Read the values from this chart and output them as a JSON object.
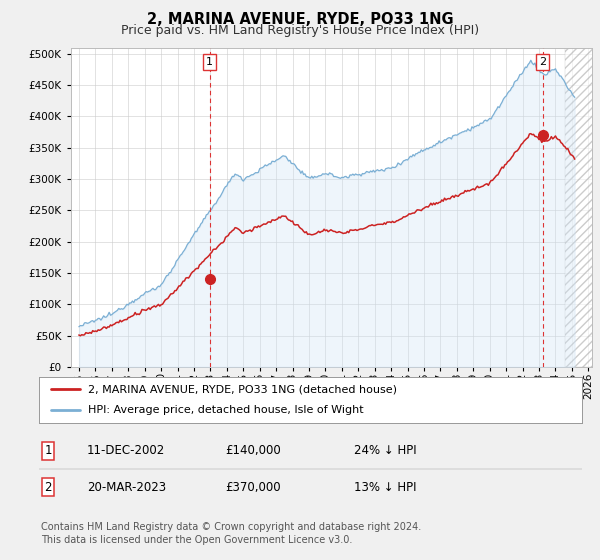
{
  "title": "2, MARINA AVENUE, RYDE, PO33 1NG",
  "subtitle": "Price paid vs. HM Land Registry's House Price Index (HPI)",
  "ylim": [
    0,
    510000
  ],
  "yticks": [
    0,
    50000,
    100000,
    150000,
    200000,
    250000,
    300000,
    350000,
    400000,
    450000,
    500000
  ],
  "xlim_start": 1994.5,
  "xlim_end": 2026.2,
  "sale1_x": 2002.944,
  "sale1_y": 140000,
  "sale1_label": "1",
  "sale2_x": 2023.22,
  "sale2_y": 370000,
  "sale2_label": "2",
  "hpi_color": "#7bafd4",
  "hpi_fill_color": "#d0e4f5",
  "price_color": "#cc2222",
  "vline_color": "#dd3333",
  "background_color": "#f0f0f0",
  "plot_bg_color": "#ffffff",
  "grid_color": "#cccccc",
  "hatch_start": 2024.58,
  "legend_entry1": "2, MARINA AVENUE, RYDE, PO33 1NG (detached house)",
  "legend_entry2": "HPI: Average price, detached house, Isle of Wight",
  "table_row1": [
    "1",
    "11-DEC-2002",
    "£140,000",
    "24% ↓ HPI"
  ],
  "table_row2": [
    "2",
    "20-MAR-2023",
    "£370,000",
    "13% ↓ HPI"
  ],
  "footer": "Contains HM Land Registry data © Crown copyright and database right 2024.\nThis data is licensed under the Open Government Licence v3.0.",
  "title_fontsize": 10.5,
  "subtitle_fontsize": 9,
  "axis_fontsize": 7.5,
  "legend_fontsize": 8,
  "table_fontsize": 8.5,
  "footer_fontsize": 7
}
